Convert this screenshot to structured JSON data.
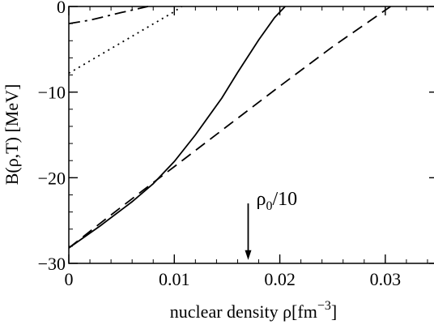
{
  "chart_data": {
    "type": "line",
    "title": "",
    "xlabel": "nuclear density ρ[fm",
    "xlabel_sup": "−3",
    "xlabel_tail": "]",
    "ylabel": "B(ρ,T) [MeV]",
    "xlim": [
      0,
      0.035
    ],
    "ylim": [
      -30,
      0
    ],
    "xticks": [
      {
        "value": 0,
        "label": "0"
      },
      {
        "value": 0.01,
        "label": "0.01"
      },
      {
        "value": 0.02,
        "label": "0.02"
      },
      {
        "value": 0.03,
        "label": "0.03"
      }
    ],
    "yticks": [
      {
        "value": 0,
        "label": "0"
      },
      {
        "value": -10,
        "label": "−10"
      },
      {
        "value": -20,
        "label": "−20"
      },
      {
        "value": -30,
        "label": "−30"
      }
    ],
    "x_minor_step": 0.002,
    "y_minor_step": 2,
    "grid": false,
    "series": [
      {
        "style": "solid",
        "x": [
          0,
          0.003,
          0.006,
          0.008,
          0.01,
          0.012,
          0.0145,
          0.016,
          0.018,
          0.0195,
          0.0205
        ],
        "y": [
          -28.2,
          -25.6,
          -22.8,
          -20.7,
          -18.1,
          -15.0,
          -10.7,
          -7.7,
          -3.9,
          -1.3,
          0
        ]
      },
      {
        "style": "dashed",
        "x": [
          0,
          0.003,
          0.007,
          0.01,
          0.015,
          0.02,
          0.025,
          0.0305
        ],
        "y": [
          -28.2,
          -25.3,
          -21.5,
          -18.7,
          -14.0,
          -9.3,
          -4.7,
          0
        ]
      },
      {
        "style": "dotted",
        "x": [
          0,
          0.005,
          0.01,
          0.0107
        ],
        "y": [
          -7.8,
          -4.2,
          -0.6,
          0
        ]
      },
      {
        "style": "dashdot",
        "x": [
          0,
          0.002,
          0.005,
          0.0075
        ],
        "y": [
          -2.0,
          -1.6,
          -0.7,
          0
        ]
      }
    ],
    "annotations": [
      {
        "text": "ρ",
        "sub": "0",
        "tail": "/10",
        "arrow_x": 0.017,
        "arrow_y_from": -23,
        "arrow_y_to": -29.6
      }
    ]
  }
}
